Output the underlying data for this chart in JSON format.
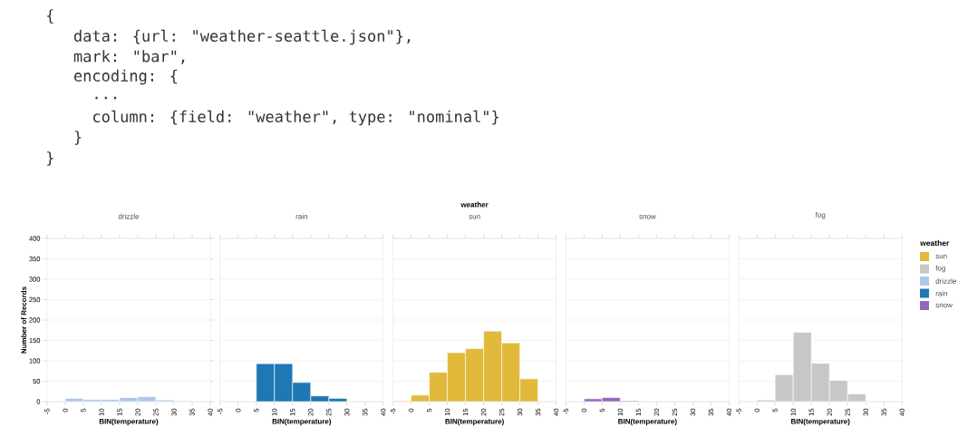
{
  "chart_data": [
    {
      "type": "other",
      "annotations": [
        "{",
        "  data: {url: \"weather-seattle.json\"},",
        "  mark: \"bar\",",
        "  encoding: {",
        "    ...",
        "    column: {field: \"weather\", type: \"nominal\"}",
        "  }",
        "}"
      ]
    },
    {
      "type": "histogram",
      "title": "drizzle",
      "xlabel": "BIN(temperature)",
      "ylabel": "Number of Records",
      "bins": [
        0,
        5,
        10,
        15,
        20,
        25,
        30,
        35
      ],
      "values": [
        8,
        5,
        5,
        10,
        12,
        4,
        2
      ],
      "color": "#aec7e8",
      "xlim": [
        -5,
        40
      ],
      "xticks": [
        -5,
        0,
        5,
        10,
        15,
        20,
        25,
        30,
        35,
        40
      ],
      "ylim": [
        0,
        400
      ],
      "yticks": [
        0,
        50,
        100,
        150,
        200,
        250,
        300,
        350,
        400
      ],
      "grid": "y"
    },
    {
      "type": "histogram",
      "title": "rain",
      "xlabel": "BIN(temperature)",
      "bins": [
        5,
        10,
        15,
        20,
        25,
        30
      ],
      "values": [
        93,
        93,
        47,
        14,
        8
      ],
      "color": "#1f77b4",
      "xlim": [
        -5,
        40
      ],
      "xticks": [
        -5,
        0,
        5,
        10,
        15,
        20,
        25,
        30,
        35,
        40
      ],
      "ylim": [
        0,
        400
      ],
      "yticks": [
        0,
        50,
        100,
        150,
        200,
        250,
        300,
        350,
        400
      ],
      "grid": "y",
      "tick_labels": "x"
    },
    {
      "type": "histogram",
      "title": "sun",
      "annotations": [
        "weather"
      ],
      "xlabel": "BIN(temperature)",
      "bins": [
        -5,
        0,
        5,
        10,
        15,
        20,
        25,
        30,
        35
      ],
      "values": [
        2,
        16,
        72,
        120,
        130,
        173,
        144,
        56
      ],
      "color": "#e2b93b",
      "xlim": [
        -5,
        40
      ],
      "xticks": [
        -5,
        0,
        5,
        10,
        15,
        20,
        25,
        30,
        35,
        40
      ],
      "ylim": [
        0,
        400
      ],
      "yticks": [
        0,
        50,
        100,
        150,
        200,
        250,
        300,
        350,
        400
      ],
      "grid": "y",
      "tick_labels": "x"
    },
    {
      "type": "histogram",
      "title": "snow",
      "xlabel": "BIN(temperature)",
      "bins": [
        0,
        5,
        10,
        15
      ],
      "values": [
        7,
        10,
        2
      ],
      "color": "#9467bd",
      "xlim": [
        -5,
        40
      ],
      "xticks": [
        -5,
        0,
        5,
        10,
        15,
        20,
        25,
        30,
        35,
        40
      ],
      "ylim": [
        0,
        400
      ],
      "yticks": [
        0,
        50,
        100,
        150,
        200,
        250,
        300,
        350,
        400
      ],
      "grid": "y",
      "tick_labels": "x"
    },
    {
      "type": "histogram",
      "title": "fog",
      "xlabel": "BIN(temperature)",
      "bins": [
        0,
        5,
        10,
        15,
        20,
        25,
        30
      ],
      "values": [
        4,
        66,
        170,
        94,
        52,
        19
      ],
      "color": "#c7c7c7",
      "xlim": [
        -5,
        40
      ],
      "xticks": [
        -5,
        0,
        5,
        10,
        15,
        20,
        25,
        30,
        35,
        40
      ],
      "ylim": [
        0,
        400
      ],
      "yticks": [
        0,
        50,
        100,
        150,
        200,
        250,
        300,
        350,
        400
      ],
      "grid": "y",
      "tick_labels": "x"
    },
    {
      "type": "other",
      "title": "weather",
      "categories": [
        "sun",
        "fog",
        "drizzle",
        "rain",
        "snow"
      ],
      "colors": [
        "#e2b93b",
        "#c7c7c7",
        "#aec7e8",
        "#1f77b4",
        "#9467bd"
      ]
    }
  ]
}
